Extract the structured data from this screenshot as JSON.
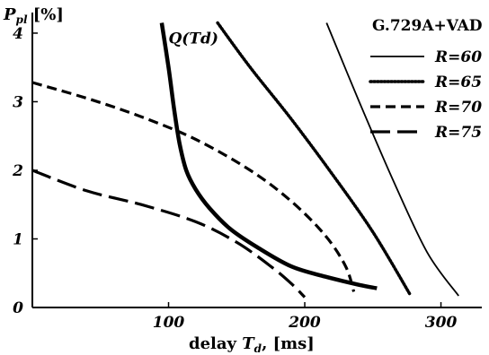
{
  "chart_data": {
    "type": "line",
    "title": "",
    "xlabel": {
      "prefix": "delay ",
      "symbol": "T",
      "sub": "d",
      "suffix": ", [ms]"
    },
    "ylabel": {
      "symbol": "P",
      "sub": "pl",
      "suffix": " [%]"
    },
    "xlim": [
      0,
      330
    ],
    "ylim": [
      0,
      4.3
    ],
    "xticks": [
      {
        "value": 100,
        "label": "100"
      },
      {
        "value": 200,
        "label": "200"
      },
      {
        "value": 300,
        "label": "300"
      }
    ],
    "yticks": [
      {
        "value": 0,
        "label": "0"
      },
      {
        "value": 1,
        "label": "1"
      },
      {
        "value": 2,
        "label": "2"
      },
      {
        "value": 3,
        "label": "3"
      },
      {
        "value": 4,
        "label": "4"
      }
    ],
    "grid": false,
    "legend": {
      "title": "G.729A+VAD",
      "position": "top-right"
    },
    "series": [
      {
        "name": "R=60",
        "style": "solid-thin",
        "x": [
          216,
          240,
          265,
          290,
          313
        ],
        "y": [
          4.15,
          3.0,
          1.85,
          0.8,
          0.17
        ]
      },
      {
        "name": "R=65",
        "style": "dotted",
        "x": [
          136,
          160,
          190,
          220,
          250,
          277
        ],
        "y": [
          4.15,
          3.5,
          2.75,
          1.95,
          1.1,
          0.2
        ]
      },
      {
        "name": "R=70",
        "style": "short-dash",
        "x": [
          0,
          40,
          80,
          120,
          160,
          190,
          215,
          230,
          236
        ],
        "y": [
          3.28,
          3.05,
          2.78,
          2.45,
          2.0,
          1.55,
          1.05,
          0.6,
          0.23
        ]
      },
      {
        "name": "R=75",
        "style": "long-dash",
        "x": [
          0,
          40,
          80,
          120,
          150,
          175,
          190,
          200
        ],
        "y": [
          2.0,
          1.7,
          1.5,
          1.25,
          0.95,
          0.6,
          0.35,
          0.15
        ]
      },
      {
        "name": "Q(Td)",
        "style": "bold",
        "x": [
          95,
          100,
          104,
          108,
          113,
          120,
          130,
          145,
          165,
          190,
          215,
          240,
          253
        ],
        "y": [
          4.15,
          3.5,
          2.9,
          2.4,
          2.0,
          1.72,
          1.45,
          1.15,
          0.88,
          0.6,
          0.45,
          0.33,
          0.28
        ]
      }
    ],
    "annotations": [
      {
        "text": "Q(Td)",
        "x": 100,
        "y": 3.85
      }
    ]
  }
}
